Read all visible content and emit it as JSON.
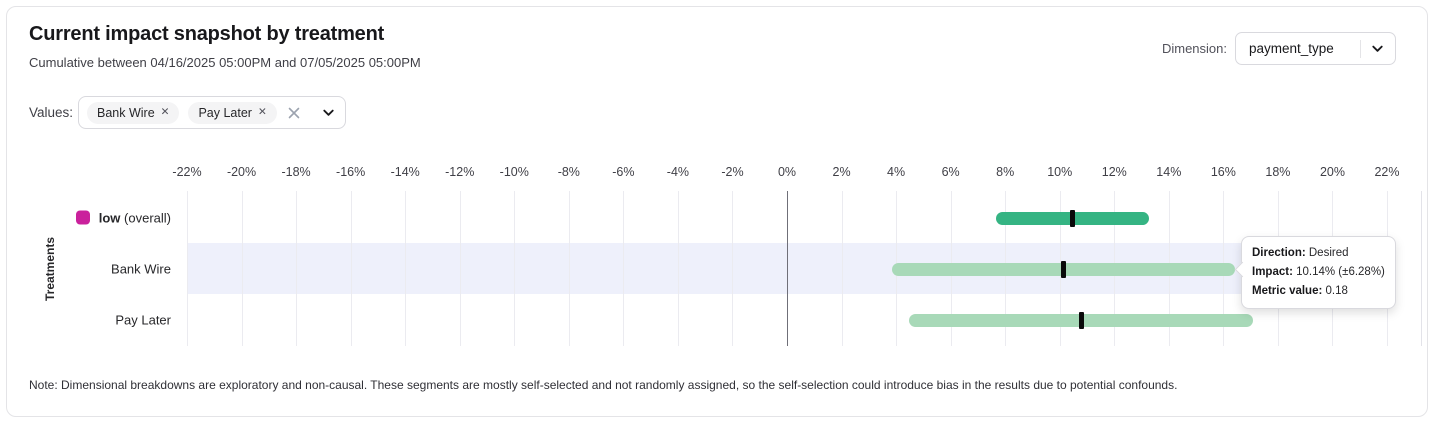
{
  "header": {
    "title": "Current impact snapshot by treatment",
    "subtitle": "Cumulative between 04/16/2025 05:00PM and 07/05/2025 05:00PM",
    "dimension_label": "Dimension:",
    "dimension_value": "payment_type"
  },
  "filters": {
    "values_label": "Values:",
    "chips": [
      {
        "label": "Bank Wire"
      },
      {
        "label": "Pay Later"
      }
    ]
  },
  "chart_data": {
    "type": "bar",
    "orientation": "horizontal-interval",
    "title": "Current impact snapshot by treatment",
    "xlabel": "",
    "ylabel": "Treatments",
    "x_unit": "%",
    "xlim": [
      -22,
      22
    ],
    "x_ticks": [
      "-22%",
      "-20%",
      "-18%",
      "-16%",
      "-14%",
      "-12%",
      "-10%",
      "-8%",
      "-6%",
      "-4%",
      "-2%",
      "0%",
      "2%",
      "4%",
      "6%",
      "8%",
      "10%",
      "12%",
      "14%",
      "16%",
      "18%",
      "20%",
      "22%"
    ],
    "grid": true,
    "highlight_band_color": "#eef0fb",
    "rows": [
      {
        "label": "low (overall)",
        "label_strong": "low",
        "label_rest": " (overall)",
        "legend_color": "#ca219c",
        "bar_color": "#35b483",
        "ci_low_pct": 7.66,
        "ci_high_pct": 13.27,
        "impact_pct": 10.45,
        "highlighted": false
      },
      {
        "label": "Bank Wire",
        "bar_color": "#a8d9b8",
        "ci_low_pct": 3.86,
        "ci_high_pct": 16.42,
        "impact_pct": 10.14,
        "highlighted": true
      },
      {
        "label": "Pay Later",
        "bar_color": "#a8d9b8",
        "ci_low_pct": 4.47,
        "ci_high_pct": 17.09,
        "impact_pct": 10.78,
        "highlighted": false
      }
    ]
  },
  "tooltip": {
    "direction_label": "Direction:",
    "direction_value": "Desired",
    "impact_label": "Impact:",
    "impact_value": "10.14% (±6.28%)",
    "metric_label": "Metric value:",
    "metric_value": "0.18"
  },
  "note": "Note: Dimensional breakdowns are exploratory and non-causal. These segments are mostly self-selected and not randomly assigned, so the self-selection could introduce bias in the results due to potential confounds."
}
